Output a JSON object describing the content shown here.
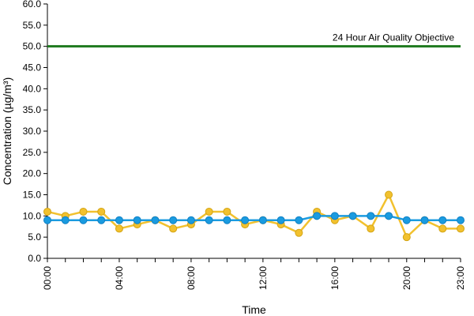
{
  "chart_data": {
    "type": "line",
    "xlabel": "Time",
    "ylabel": "Concentration (µg/m³)",
    "ylim": [
      0,
      60
    ],
    "y_ticks": [
      "0.0",
      "5.0",
      "10.0",
      "15.0",
      "20.0",
      "25.0",
      "30.0",
      "35.0",
      "40.0",
      "45.0",
      "50.0",
      "55.0",
      "60.0"
    ],
    "x": [
      0,
      1,
      2,
      3,
      4,
      5,
      6,
      7,
      8,
      9,
      10,
      11,
      12,
      13,
      14,
      15,
      16,
      17,
      18,
      19,
      20,
      21,
      22,
      23
    ],
    "x_ticks": [
      {
        "x": 0,
        "label": "00:00"
      },
      {
        "x": 4,
        "label": "04:00"
      },
      {
        "x": 8,
        "label": "08:00"
      },
      {
        "x": 12,
        "label": "12:00"
      },
      {
        "x": 16,
        "label": "16:00"
      },
      {
        "x": 20,
        "label": "20:00"
      },
      {
        "x": 23,
        "label": "23:00"
      }
    ],
    "series": [
      {
        "color": "#f2c12e",
        "values": [
          11,
          10,
          11,
          11,
          7,
          8,
          9,
          7,
          8,
          11,
          11,
          8,
          9,
          8,
          6,
          11,
          9,
          10,
          7,
          15,
          5,
          9,
          7,
          7
        ]
      },
      {
        "color": "#1a9be0",
        "values": [
          9,
          9,
          9,
          9,
          9,
          9,
          9,
          9,
          9,
          9,
          9,
          9,
          9,
          9,
          9,
          10,
          10,
          10,
          10,
          10,
          9,
          9,
          9,
          9
        ]
      }
    ],
    "reference_line": {
      "value": 50,
      "label": "24 Hour Air Quality Objective",
      "color": "#1e7a1e"
    },
    "grid": false,
    "legend": "none"
  }
}
